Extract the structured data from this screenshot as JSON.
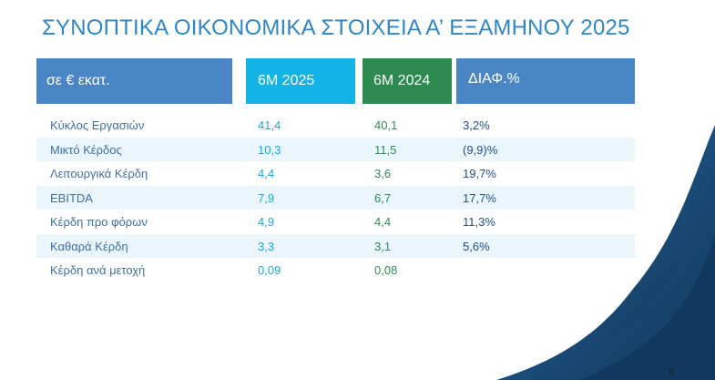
{
  "title": "ΣΥΝΟΠΤΙΚΑ ΟΙΚΟΝΟΜΙΚΑ ΣΤΟΙΧΕΙΑ Α’ ΕΞΑΜΗΝΟΥ 2025",
  "headers": [
    "σε € εκατ.",
    "6M 2025",
    "6M 2024",
    "ΔΙΑΦ.%"
  ],
  "rows": [
    [
      "Κύκλος Εργασιών",
      "41,4",
      "40,1",
      "3,2%"
    ],
    [
      "Μικτό Κέρδος",
      "10,3",
      "11,5",
      "(9,9)%"
    ],
    [
      "Λειτουργικά Κέρδη",
      "4,4",
      "3,6",
      "19,7%"
    ],
    [
      "EBITDA",
      "7,9",
      "6,7",
      "17,7%"
    ],
    [
      "Κέρδη προ φόρων",
      "4,9",
      "4,4",
      "11,3%"
    ],
    [
      "Καθαρά Κέρδη",
      "3,3",
      "3,1",
      "5,6%"
    ],
    [
      "Κέρδη ανά μετοχή",
      "0,09",
      "0,08",
      ""
    ]
  ],
  "page_number": "5"
}
